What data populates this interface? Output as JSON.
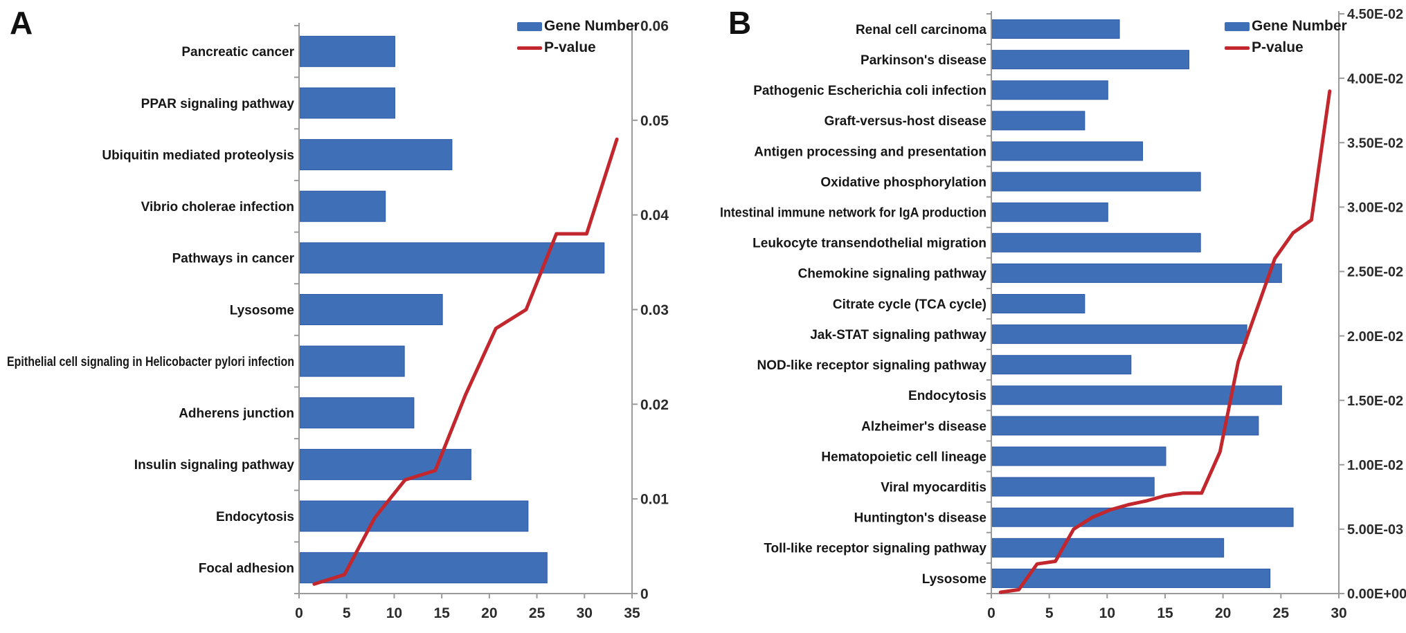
{
  "figure": {
    "background": "#ffffff",
    "panels": [
      {
        "letter": "A"
      },
      {
        "letter": "B"
      }
    ]
  },
  "legend": {
    "gene_number_label": "Gene Number",
    "p_value_label": "P-value"
  },
  "colors": {
    "bar_fill": "#3e6fb7",
    "bar_edge": "#2e5aa8",
    "line_red": "#c1272d",
    "axis_gray": "#9a9a9a",
    "tick_text": "#2b2b2b",
    "category_text": "#161616"
  },
  "chart_data": [
    {
      "id": "panel_a",
      "type": "bar",
      "orientation": "horizontal",
      "title": "",
      "legend_position": "top-right",
      "grid": false,
      "categories": [
        "Pancreatic cancer",
        "PPAR signaling pathway",
        "Ubiquitin mediated proteolysis",
        "Vibrio cholerae infection",
        "Pathways in cancer",
        "Lysosome",
        "Epithelial cell signaling in Helicobacter pylori infection",
        "Adherens junction",
        "Insulin signaling pathway",
        "Endocytosis",
        "Focal adhesion"
      ],
      "series": [
        {
          "name": "Gene Number",
          "type": "bar",
          "values": [
            10,
            10,
            16,
            9,
            32,
            15,
            11,
            12,
            18,
            24,
            26
          ]
        },
        {
          "name": "P-value",
          "type": "line",
          "axis": "secondary",
          "values": [
            0.048,
            0.038,
            0.038,
            0.03,
            0.028,
            0.021,
            0.013,
            0.012,
            0.008,
            0.002,
            0.001
          ]
        }
      ],
      "x_axis": {
        "min": 0,
        "max": 35,
        "step": 5,
        "tick_labels": [
          "0",
          "5",
          "10",
          "15",
          "20",
          "25",
          "30",
          "35"
        ]
      },
      "secondary_axis": {
        "min": 0,
        "max": 0.06,
        "step": 0.01,
        "tick_labels": [
          "0.06",
          "0.05",
          "0.04",
          "0.03",
          "0.02",
          "0.01",
          "0"
        ]
      }
    },
    {
      "id": "panel_b",
      "type": "bar",
      "orientation": "horizontal",
      "title": "",
      "legend_position": "top-right",
      "grid": false,
      "categories": [
        "Renal cell carcinoma",
        "Parkinson's disease",
        "Pathogenic Escherichia coli infection",
        "Graft-versus-host disease",
        "Antigen processing and presentation",
        "Oxidative phosphorylation",
        "Intestinal immune network for IgA production",
        "Leukocyte transendothelial migration",
        "Chemokine signaling pathway",
        "Citrate cycle (TCA  cycle)",
        "Jak-STAT signaling pathway",
        "NOD-like receptor signaling pathway",
        "Endocytosis",
        "Alzheimer's disease",
        "Hematopoietic cell lineage",
        "Viral myocarditis",
        "Huntington's disease",
        "Toll-like receptor signaling pathway",
        "Lysosome"
      ],
      "series": [
        {
          "name": "Gene Number",
          "type": "bar",
          "values": [
            11,
            17,
            10,
            8,
            13,
            18,
            10,
            18,
            25,
            8,
            22,
            12,
            25,
            23,
            15,
            14,
            26,
            20,
            24
          ]
        },
        {
          "name": "P-value",
          "type": "line",
          "axis": "secondary",
          "values": [
            0.039,
            0.029,
            0.028,
            0.026,
            0.022,
            0.018,
            0.011,
            0.0078,
            0.0078,
            0.0076,
            0.0072,
            0.0069,
            0.0065,
            0.0059,
            0.005,
            0.0025,
            0.0023,
            0.0003,
            0.0001
          ]
        }
      ],
      "x_axis": {
        "min": 0,
        "max": 30,
        "step": 5,
        "tick_labels": [
          "0",
          "5",
          "10",
          "15",
          "20",
          "25",
          "30"
        ]
      },
      "secondary_axis": {
        "min": 0,
        "max": 0.045,
        "step": 0.005,
        "tick_labels": [
          "4.50E-02",
          "4.00E-02",
          "3.50E-02",
          "3.00E-02",
          "2.50E-02",
          "2.00E-02",
          "1.50E-02",
          "1.00E-02",
          "5.00E-03",
          "0.00E+00"
        ]
      }
    }
  ]
}
